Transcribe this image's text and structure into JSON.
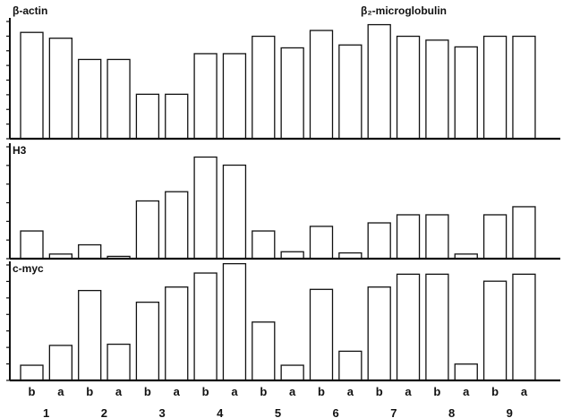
{
  "chart_data": [
    {
      "type": "bar",
      "title": "β-actin",
      "annotation": "β₂-microglobulin",
      "categories": [
        "b",
        "a",
        "b",
        "a",
        "b",
        "a",
        "b",
        "a",
        "b",
        "a",
        "b",
        "a",
        "b",
        "a",
        "b",
        "a",
        "b",
        "a"
      ],
      "groups": [
        "1",
        "2",
        "3",
        "4",
        "5",
        "6",
        "7",
        "8",
        "9"
      ],
      "values": [
        110,
        104,
        82,
        82,
        46,
        46,
        88,
        88,
        106,
        94,
        112,
        97,
        118,
        106,
        102,
        95,
        106,
        106
      ],
      "ylim": [
        0,
        125
      ],
      "yticks": 8
    },
    {
      "type": "bar",
      "title": "H3",
      "categories": [
        "b",
        "a",
        "b",
        "a",
        "b",
        "a",
        "b",
        "a",
        "b",
        "a",
        "b",
        "a",
        "b",
        "a",
        "b",
        "a",
        "b",
        "a"
      ],
      "groups": [
        "1",
        "2",
        "3",
        "4",
        "5",
        "6",
        "7",
        "8",
        "9"
      ],
      "values": [
        24,
        4,
        12,
        2,
        50,
        58,
        88,
        81,
        24,
        6,
        28,
        5,
        31,
        38,
        38,
        4,
        38,
        45
      ],
      "ylim": [
        0,
        100
      ],
      "yticks": 6
    },
    {
      "type": "bar",
      "title": "c-myc",
      "categories": [
        "b",
        "a",
        "b",
        "a",
        "b",
        "a",
        "b",
        "a",
        "b",
        "a",
        "b",
        "a",
        "b",
        "a",
        "b",
        "a",
        "b",
        "a"
      ],
      "groups": [
        "1",
        "2",
        "3",
        "4",
        "5",
        "6",
        "7",
        "8",
        "9"
      ],
      "values": [
        13,
        30,
        77,
        31,
        67,
        80,
        92,
        100,
        50,
        13,
        78,
        25,
        80,
        91,
        91,
        14,
        85,
        91
      ],
      "ylim": [
        0,
        102
      ],
      "yticks": 7
    }
  ]
}
